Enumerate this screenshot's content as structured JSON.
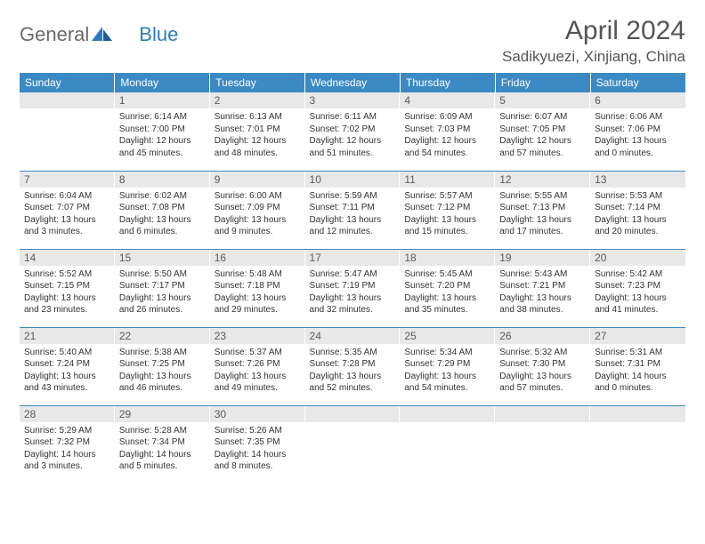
{
  "brand": {
    "part1": "General",
    "part2": "Blue"
  },
  "title": "April 2024",
  "location": "Sadikyuezi, Xinjiang, China",
  "colors": {
    "header_bg": "#3b8ac4",
    "header_text": "#ffffff",
    "daynum_bg": "#e8e8e8",
    "daynum_text": "#5a5a5a",
    "body_text": "#333333",
    "rule": "#3b8ac4",
    "logo_gray": "#6a6a6a",
    "logo_blue": "#2b7cc0"
  },
  "weekdays": [
    "Sunday",
    "Monday",
    "Tuesday",
    "Wednesday",
    "Thursday",
    "Friday",
    "Saturday"
  ],
  "weeks": [
    [
      {
        "n": "",
        "lines": []
      },
      {
        "n": "1",
        "lines": [
          "Sunrise: 6:14 AM",
          "Sunset: 7:00 PM",
          "Daylight: 12 hours and 45 minutes."
        ]
      },
      {
        "n": "2",
        "lines": [
          "Sunrise: 6:13 AM",
          "Sunset: 7:01 PM",
          "Daylight: 12 hours and 48 minutes."
        ]
      },
      {
        "n": "3",
        "lines": [
          "Sunrise: 6:11 AM",
          "Sunset: 7:02 PM",
          "Daylight: 12 hours and 51 minutes."
        ]
      },
      {
        "n": "4",
        "lines": [
          "Sunrise: 6:09 AM",
          "Sunset: 7:03 PM",
          "Daylight: 12 hours and 54 minutes."
        ]
      },
      {
        "n": "5",
        "lines": [
          "Sunrise: 6:07 AM",
          "Sunset: 7:05 PM",
          "Daylight: 12 hours and 57 minutes."
        ]
      },
      {
        "n": "6",
        "lines": [
          "Sunrise: 6:06 AM",
          "Sunset: 7:06 PM",
          "Daylight: 13 hours and 0 minutes."
        ]
      }
    ],
    [
      {
        "n": "7",
        "lines": [
          "Sunrise: 6:04 AM",
          "Sunset: 7:07 PM",
          "Daylight: 13 hours and 3 minutes."
        ]
      },
      {
        "n": "8",
        "lines": [
          "Sunrise: 6:02 AM",
          "Sunset: 7:08 PM",
          "Daylight: 13 hours and 6 minutes."
        ]
      },
      {
        "n": "9",
        "lines": [
          "Sunrise: 6:00 AM",
          "Sunset: 7:09 PM",
          "Daylight: 13 hours and 9 minutes."
        ]
      },
      {
        "n": "10",
        "lines": [
          "Sunrise: 5:59 AM",
          "Sunset: 7:11 PM",
          "Daylight: 13 hours and 12 minutes."
        ]
      },
      {
        "n": "11",
        "lines": [
          "Sunrise: 5:57 AM",
          "Sunset: 7:12 PM",
          "Daylight: 13 hours and 15 minutes."
        ]
      },
      {
        "n": "12",
        "lines": [
          "Sunrise: 5:55 AM",
          "Sunset: 7:13 PM",
          "Daylight: 13 hours and 17 minutes."
        ]
      },
      {
        "n": "13",
        "lines": [
          "Sunrise: 5:53 AM",
          "Sunset: 7:14 PM",
          "Daylight: 13 hours and 20 minutes."
        ]
      }
    ],
    [
      {
        "n": "14",
        "lines": [
          "Sunrise: 5:52 AM",
          "Sunset: 7:15 PM",
          "Daylight: 13 hours and 23 minutes."
        ]
      },
      {
        "n": "15",
        "lines": [
          "Sunrise: 5:50 AM",
          "Sunset: 7:17 PM",
          "Daylight: 13 hours and 26 minutes."
        ]
      },
      {
        "n": "16",
        "lines": [
          "Sunrise: 5:48 AM",
          "Sunset: 7:18 PM",
          "Daylight: 13 hours and 29 minutes."
        ]
      },
      {
        "n": "17",
        "lines": [
          "Sunrise: 5:47 AM",
          "Sunset: 7:19 PM",
          "Daylight: 13 hours and 32 minutes."
        ]
      },
      {
        "n": "18",
        "lines": [
          "Sunrise: 5:45 AM",
          "Sunset: 7:20 PM",
          "Daylight: 13 hours and 35 minutes."
        ]
      },
      {
        "n": "19",
        "lines": [
          "Sunrise: 5:43 AM",
          "Sunset: 7:21 PM",
          "Daylight: 13 hours and 38 minutes."
        ]
      },
      {
        "n": "20",
        "lines": [
          "Sunrise: 5:42 AM",
          "Sunset: 7:23 PM",
          "Daylight: 13 hours and 41 minutes."
        ]
      }
    ],
    [
      {
        "n": "21",
        "lines": [
          "Sunrise: 5:40 AM",
          "Sunset: 7:24 PM",
          "Daylight: 13 hours and 43 minutes."
        ]
      },
      {
        "n": "22",
        "lines": [
          "Sunrise: 5:38 AM",
          "Sunset: 7:25 PM",
          "Daylight: 13 hours and 46 minutes."
        ]
      },
      {
        "n": "23",
        "lines": [
          "Sunrise: 5:37 AM",
          "Sunset: 7:26 PM",
          "Daylight: 13 hours and 49 minutes."
        ]
      },
      {
        "n": "24",
        "lines": [
          "Sunrise: 5:35 AM",
          "Sunset: 7:28 PM",
          "Daylight: 13 hours and 52 minutes."
        ]
      },
      {
        "n": "25",
        "lines": [
          "Sunrise: 5:34 AM",
          "Sunset: 7:29 PM",
          "Daylight: 13 hours and 54 minutes."
        ]
      },
      {
        "n": "26",
        "lines": [
          "Sunrise: 5:32 AM",
          "Sunset: 7:30 PM",
          "Daylight: 13 hours and 57 minutes."
        ]
      },
      {
        "n": "27",
        "lines": [
          "Sunrise: 5:31 AM",
          "Sunset: 7:31 PM",
          "Daylight: 14 hours and 0 minutes."
        ]
      }
    ],
    [
      {
        "n": "28",
        "lines": [
          "Sunrise: 5:29 AM",
          "Sunset: 7:32 PM",
          "Daylight: 14 hours and 3 minutes."
        ]
      },
      {
        "n": "29",
        "lines": [
          "Sunrise: 5:28 AM",
          "Sunset: 7:34 PM",
          "Daylight: 14 hours and 5 minutes."
        ]
      },
      {
        "n": "30",
        "lines": [
          "Sunrise: 5:26 AM",
          "Sunset: 7:35 PM",
          "Daylight: 14 hours and 8 minutes."
        ]
      },
      {
        "n": "",
        "lines": []
      },
      {
        "n": "",
        "lines": []
      },
      {
        "n": "",
        "lines": []
      },
      {
        "n": "",
        "lines": []
      }
    ]
  ]
}
